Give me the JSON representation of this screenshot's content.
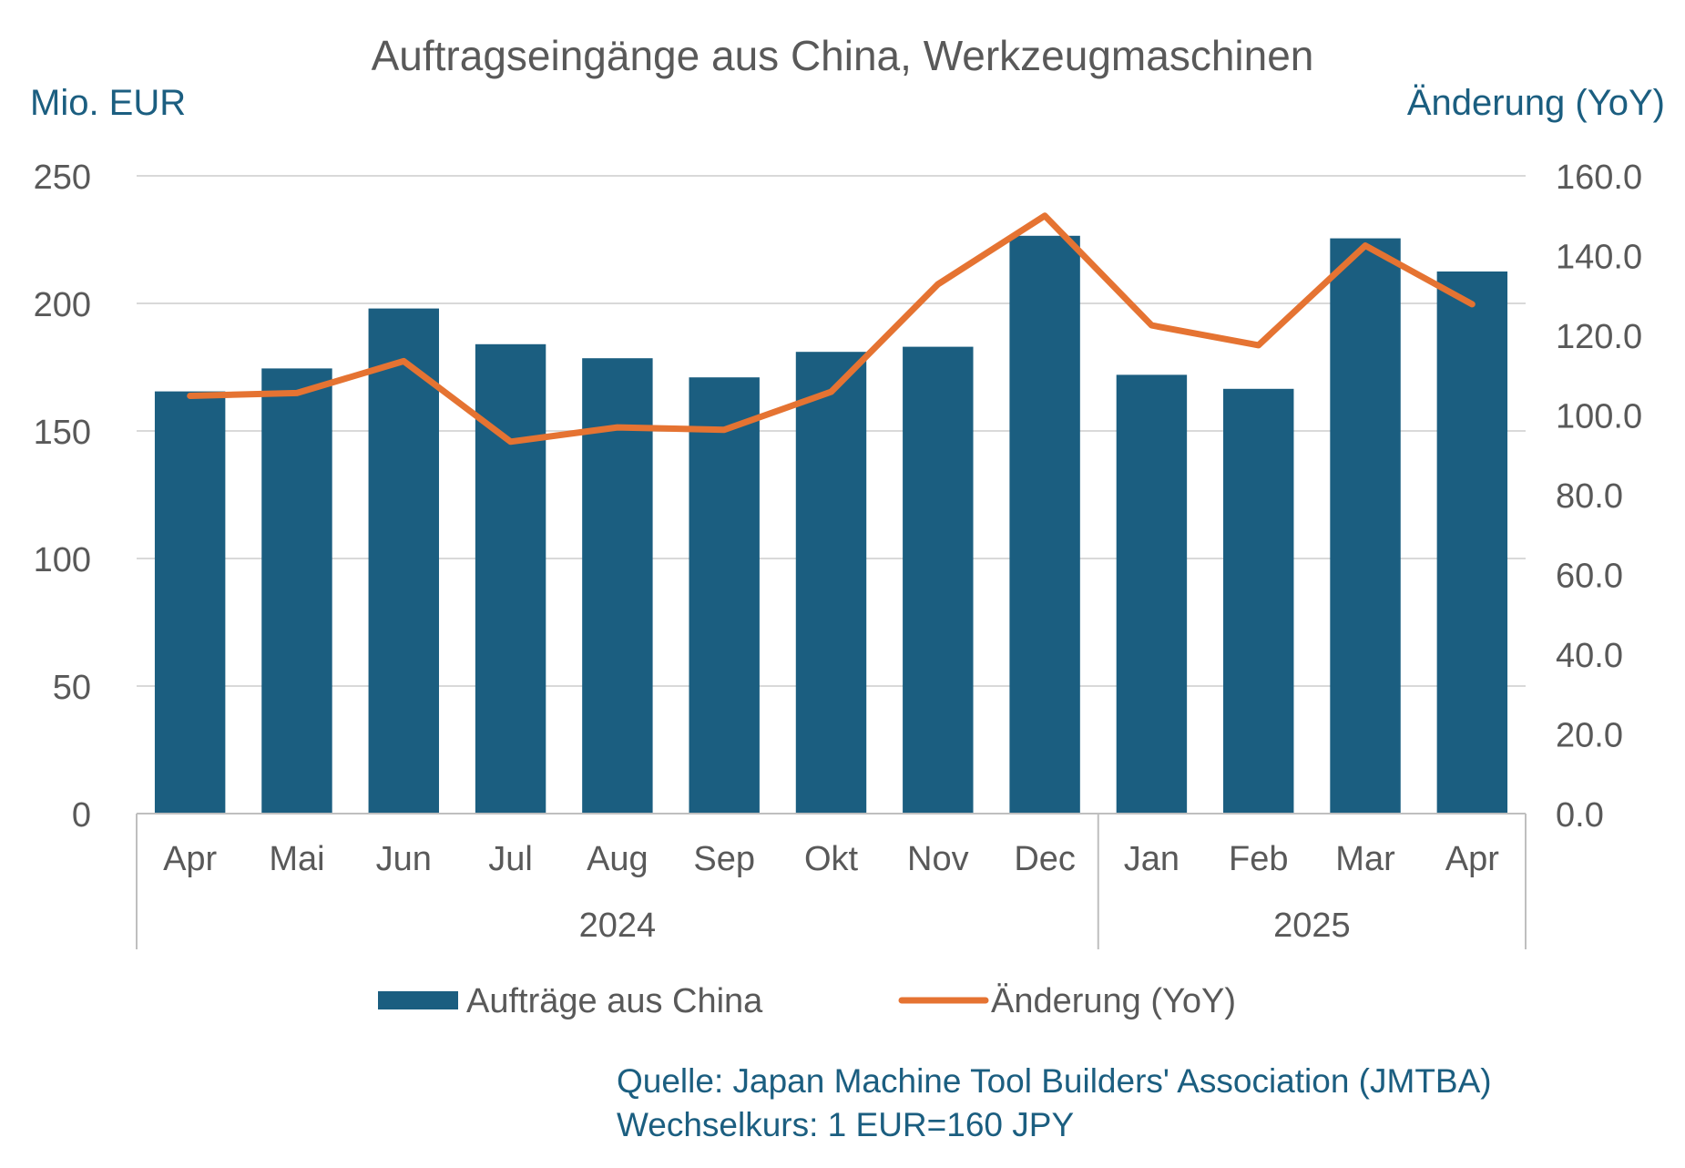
{
  "chart_data": {
    "type": "bar",
    "title": "Auftragseingänge aus China, Werkzeugmaschinen",
    "y_left_label": "Mio. EUR",
    "y_right_label": "Änderung (YoY)",
    "categories": [
      "Apr",
      "Mai",
      "Jun",
      "Jul",
      "Aug",
      "Sep",
      "Okt",
      "Nov",
      "Dec",
      "Jan",
      "Feb",
      "Mar",
      "Apr"
    ],
    "year_groups": [
      {
        "label": "2024",
        "count": 9
      },
      {
        "label": "2025",
        "count": 4
      }
    ],
    "series": [
      {
        "name": "Aufträge aus China",
        "type": "bar",
        "axis": "left",
        "color": "#1b5e80",
        "values": [
          165.5,
          174.5,
          198,
          184,
          178.5,
          171,
          181,
          183,
          226.5,
          172,
          166.5,
          225.5,
          212.5
        ]
      },
      {
        "name": "Änderung (YoY)",
        "type": "line",
        "axis": "right",
        "color": "#e57332",
        "values": [
          104.8,
          105.5,
          113.5,
          93.3,
          96.9,
          96.3,
          105.8,
          132.8,
          150,
          122.5,
          117.5,
          142.5,
          127.8
        ]
      }
    ],
    "y_left": {
      "min": 0,
      "max": 250,
      "ticks": [
        "0",
        "50",
        "100",
        "150",
        "200",
        "250"
      ]
    },
    "y_right": {
      "min": 0,
      "max": 160,
      "ticks": [
        "0.0",
        "20.0",
        "40.0",
        "60.0",
        "80.0",
        "100.0",
        "120.0",
        "140.0",
        "160.0"
      ]
    },
    "grid": true,
    "legend_position": "bottom"
  },
  "footnote": {
    "source": "Quelle: Japan Machine Tool Builders' Association (JMTBA)",
    "rate": "Wechselkurs: 1 EUR=160 JPY"
  },
  "colors": {
    "text": "#595959",
    "axis_title": "#1b5e80",
    "grid": "#d9d9d9",
    "axis_line": "#bfbfbf"
  }
}
